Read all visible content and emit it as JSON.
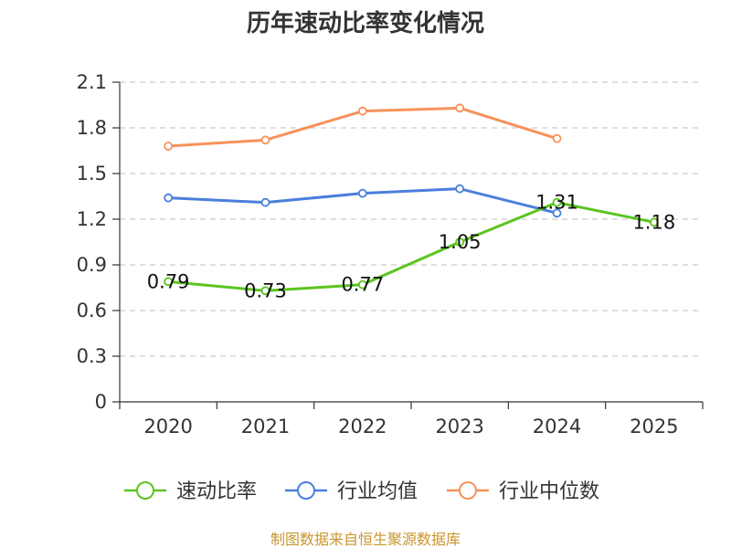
{
  "chart_data": {
    "type": "line",
    "title": "历年速动比率变化情况",
    "categories": [
      "2020",
      "2021",
      "2022",
      "2023",
      "2024",
      "2025"
    ],
    "y_ticks": [
      "0",
      "0.3",
      "0.6",
      "0.9",
      "1.2",
      "1.5",
      "1.8",
      "2.1"
    ],
    "ylim": [
      0,
      2.1
    ],
    "grid": true,
    "legend_position": "bottom",
    "series": [
      {
        "name": "速动比率",
        "color": "#5cc41f",
        "values": [
          0.79,
          0.73,
          0.77,
          1.05,
          1.31,
          1.18
        ],
        "labels": [
          "0.79",
          "0.73",
          "0.77",
          "1.05",
          "1.31",
          "1.18"
        ],
        "show_labels": true
      },
      {
        "name": "行业均值",
        "color": "#4a7fdb",
        "values": [
          1.34,
          1.31,
          1.37,
          1.4,
          1.24,
          null
        ],
        "show_labels": false
      },
      {
        "name": "行业中位数",
        "color": "#f7925a",
        "values": [
          1.68,
          1.72,
          1.91,
          1.93,
          1.73,
          null
        ],
        "show_labels": false
      }
    ]
  },
  "source": "制图数据来自恒生聚源数据库"
}
